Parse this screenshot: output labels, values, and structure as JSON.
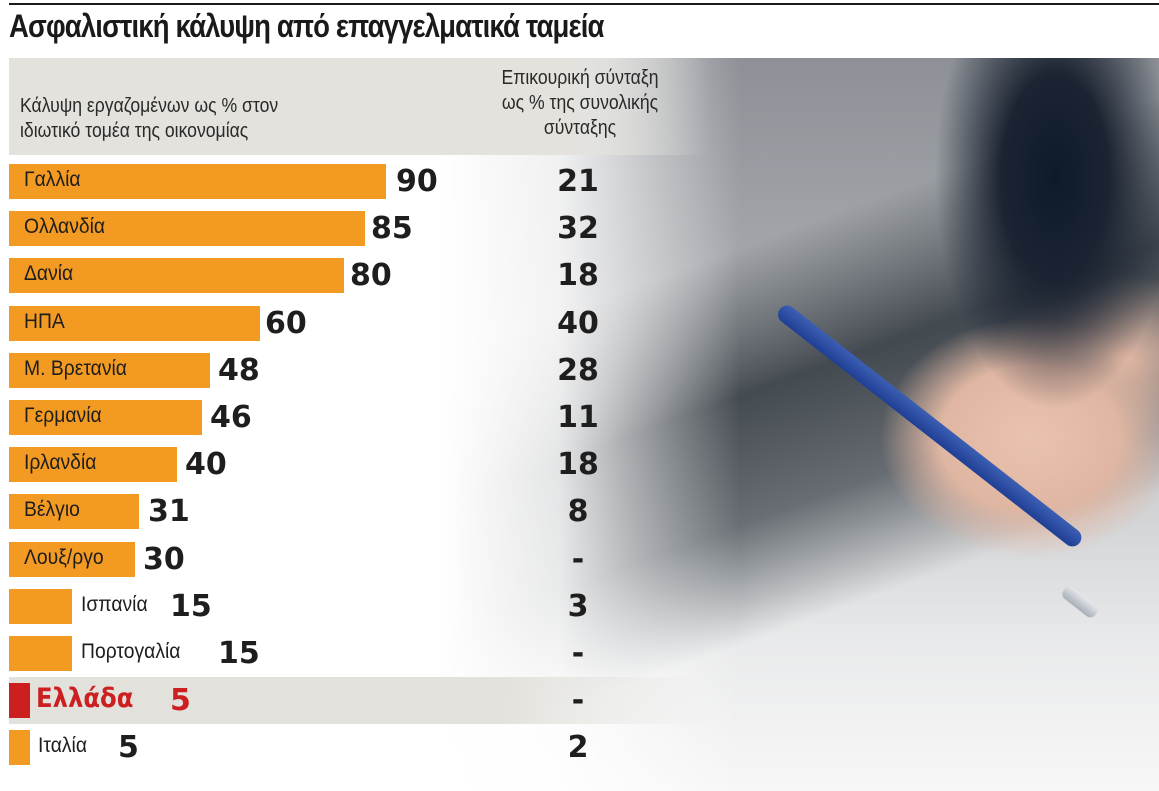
{
  "title": "Ασφαλιστική κάλυψη από επαγγελματικά ταμεία",
  "header": {
    "left_line1": "Κάλυψη εργαζομένων ως % στον",
    "left_line2": "ιδιωτικό τομέα της οικονομίας",
    "right_line1": "Επικουρική σύνταξη",
    "right_line2": "ως % της συνολικής",
    "right_line3": "σύνταξης"
  },
  "colors": {
    "bar": "#f29a21",
    "highlight_bar": "#cc1f1f",
    "header_band": "#e3e2dd",
    "text": "#1e1e1e"
  },
  "rows": [
    {
      "country": "Γαλλία",
      "coverage": "90",
      "supplementary": "21"
    },
    {
      "country": "Ολλανδία",
      "coverage": "85",
      "supplementary": "32"
    },
    {
      "country": "Δανία",
      "coverage": "80",
      "supplementary": "18"
    },
    {
      "country": "ΗΠΑ",
      "coverage": "60",
      "supplementary": "40"
    },
    {
      "country": "Μ. Βρετανία",
      "coverage": "48",
      "supplementary": "28"
    },
    {
      "country": "Γερμανία",
      "coverage": "46",
      "supplementary": "11"
    },
    {
      "country": "Ιρλανδία",
      "coverage": "40",
      "supplementary": "18"
    },
    {
      "country": "Βέλγιο",
      "coverage": "31",
      "supplementary": "8"
    },
    {
      "country": "Λουξ/ργο",
      "coverage": "30",
      "supplementary": "-"
    },
    {
      "country": "Ισπανία",
      "coverage": "15",
      "supplementary": "3"
    },
    {
      "country": "Πορτογαλία",
      "coverage": "15",
      "supplementary": "-"
    },
    {
      "country": "Ελλάδα",
      "coverage": "5",
      "supplementary": "-",
      "highlight": true
    },
    {
      "country": "Ιταλία",
      "coverage": "5",
      "supplementary": "2"
    }
  ],
  "chart_data": {
    "type": "bar",
    "orientation": "horizontal",
    "title": "Ασφαλιστική κάλυψη από επαγγελματικά ταμεία",
    "categories": [
      "Γαλλία",
      "Ολλανδία",
      "Δανία",
      "ΗΠΑ",
      "Μ. Βρετανία",
      "Γερμανία",
      "Ιρλανδία",
      "Βέλγιο",
      "Λουξ/ργο",
      "Ισπανία",
      "Πορτογαλία",
      "Ελλάδα",
      "Ιταλία"
    ],
    "series": [
      {
        "name": "Κάλυψη εργαζομένων ως % στον ιδιωτικό τομέα της οικονομίας",
        "values": [
          90,
          85,
          80,
          60,
          48,
          46,
          40,
          31,
          30,
          15,
          15,
          5,
          5
        ]
      },
      {
        "name": "Επικουρική σύνταξη ως % της συνολικής σύνταξης",
        "values": [
          21,
          32,
          18,
          40,
          28,
          11,
          18,
          8,
          null,
          3,
          null,
          null,
          2
        ]
      }
    ],
    "highlight": "Ελλάδα",
    "xlabel": "",
    "ylabel": "",
    "xlim": [
      0,
      90
    ],
    "grid": false,
    "legend": "column headers"
  }
}
